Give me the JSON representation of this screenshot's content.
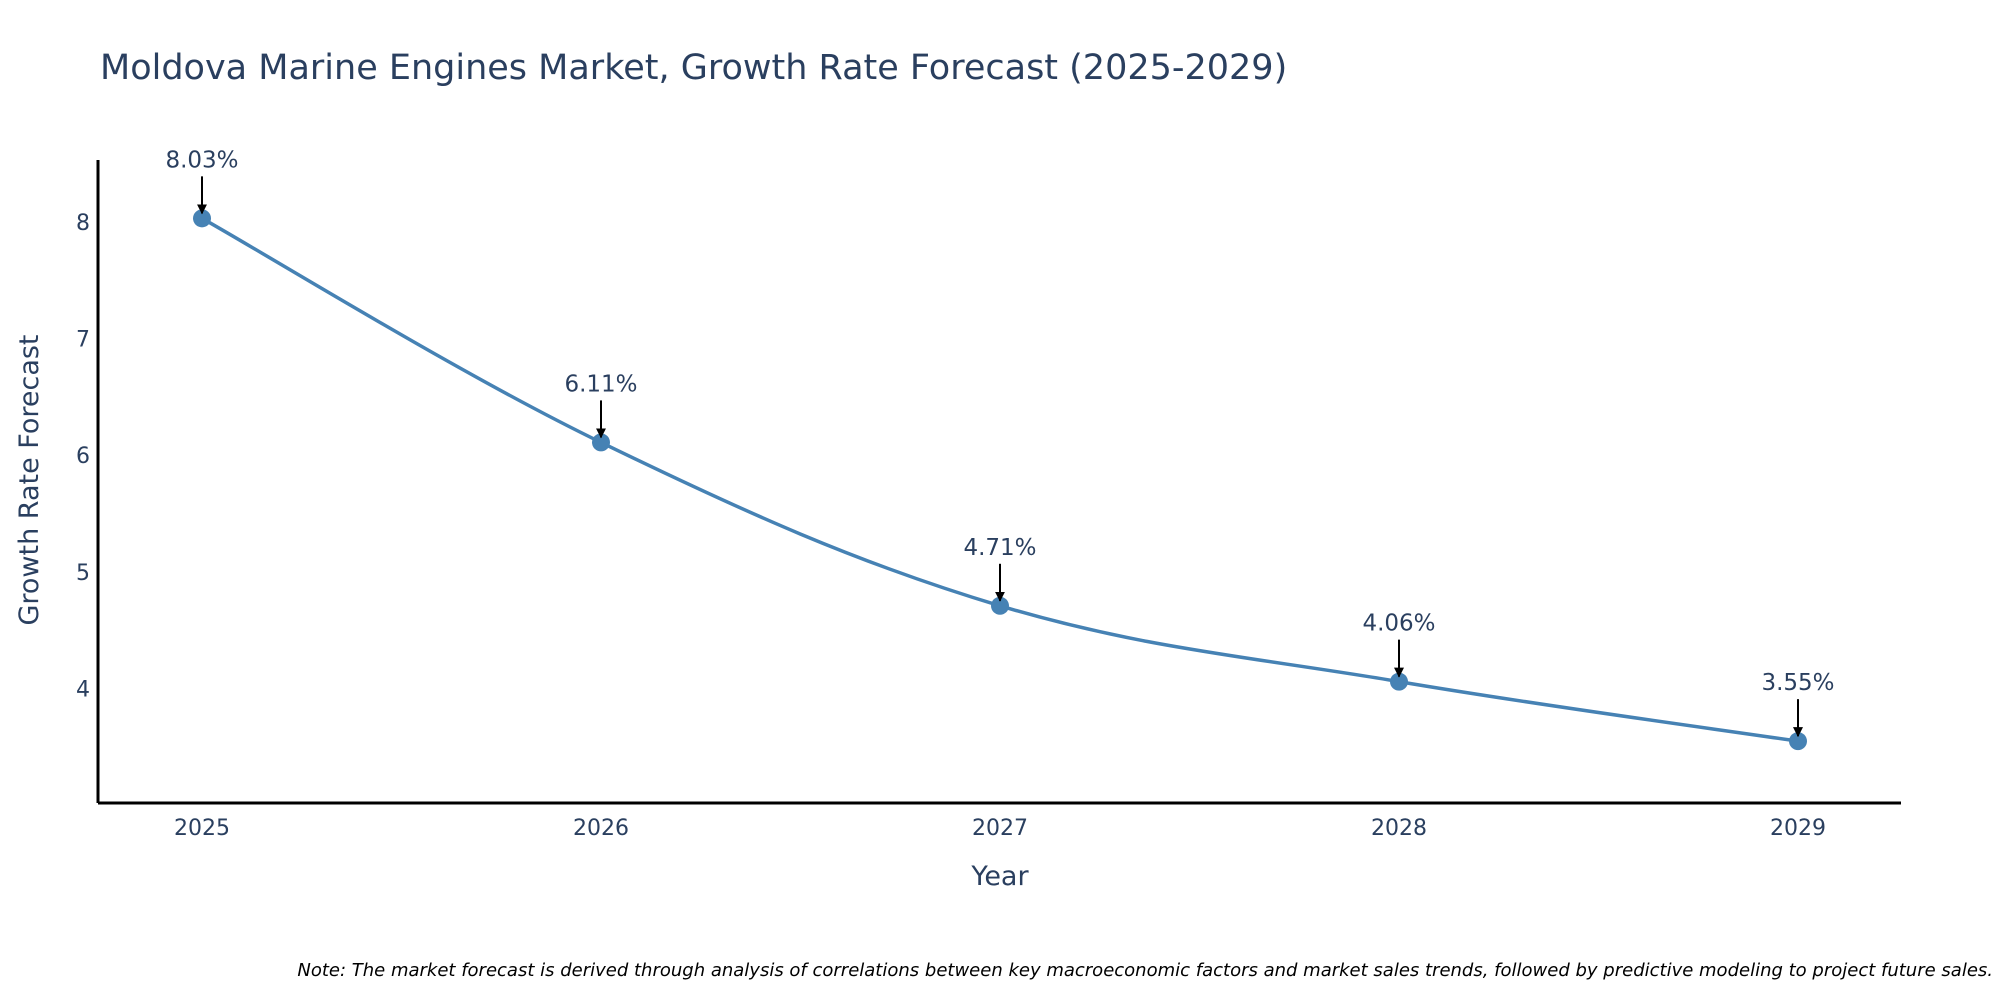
{
  "chart_data": {
    "type": "line",
    "title": "Moldova Marine Engines Market, Growth Rate Forecast (2025-2029)",
    "xlabel": "Year",
    "ylabel": "Growth Rate Forecast",
    "categories": [
      "2025",
      "2026",
      "2027",
      "2028",
      "2029"
    ],
    "series": [
      {
        "name": "Growth Rate Forecast",
        "values": [
          8.03,
          6.11,
          4.71,
          4.06,
          3.55
        ],
        "color": "#4682b4"
      }
    ],
    "annotations": [
      "8.03%",
      "6.11%",
      "4.71%",
      "4.06%",
      "3.55%"
    ],
    "yticks": [
      "4",
      "5",
      "6",
      "7",
      "8"
    ],
    "ylim": [
      3.02,
      8.53
    ],
    "line_shape": "spline",
    "grid": false,
    "legend": "none"
  },
  "note": "Note: The market forecast is derived through analysis of correlations between key macroeconomic factors and market sales trends, followed by predictive modeling to project future sales.",
  "colors": {
    "line": "#4682b4",
    "text": "#2a3f5f",
    "axis": "#000000",
    "arrow": "#000000"
  }
}
